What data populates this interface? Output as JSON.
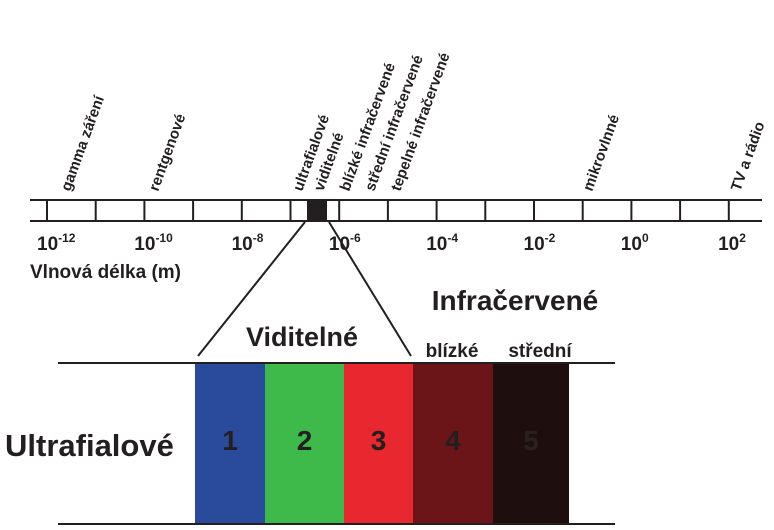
{
  "scale": {
    "labels": [
      "gamma záření",
      "rentgenové",
      "ultrafialové",
      "viditelné",
      "blízké infračervené",
      "střední infračervené",
      "tepelné infračervené",
      "mikrovlnné",
      "TV a rádio"
    ],
    "ticks": [
      {
        "base": "10",
        "exp": "-12"
      },
      {
        "base": "10",
        "exp": "-10"
      },
      {
        "base": "10",
        "exp": "-8"
      },
      {
        "base": "10",
        "exp": "-6"
      },
      {
        "base": "10",
        "exp": "-4"
      },
      {
        "base": "10",
        "exp": "-2"
      },
      {
        "base": "10",
        "exp": "0"
      },
      {
        "base": "10",
        "exp": "2"
      }
    ],
    "axis_label": "Vlnová délka (m)"
  },
  "detail": {
    "visible": "Viditelné",
    "infrared": "Infračervené",
    "near": "blízké",
    "middle": "střední",
    "ultraviolet": "Ultrafialové",
    "bands": [
      "1",
      "2",
      "3",
      "4",
      "5"
    ]
  }
}
